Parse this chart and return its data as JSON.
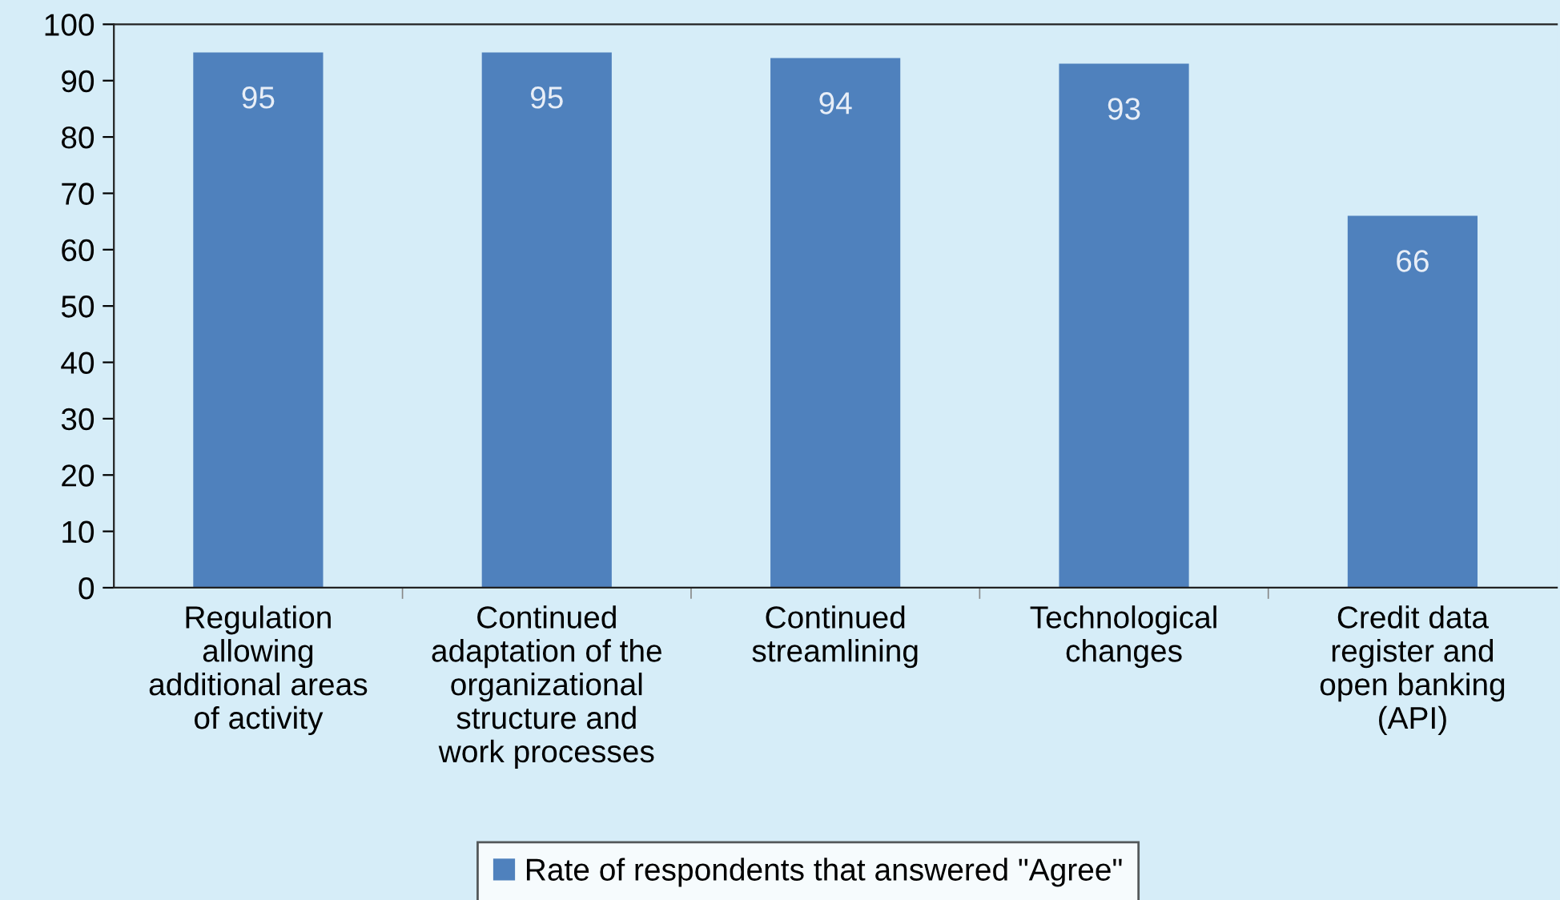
{
  "chart_data": {
    "type": "bar",
    "categories": [
      "Regulation\nallowing\nadditional areas\nof activity",
      "Continued\nadaptation of the\norganizational\nstructure and\nwork processes",
      "Continued\nstreamlining",
      "Technological\nchanges",
      "Credit data\nregister and\nopen banking\n(API)"
    ],
    "series": [
      {
        "name": "Rate of respondents that answered \"Agree\"",
        "color": "#4f81bd",
        "values": [
          95,
          95,
          94,
          93,
          66
        ]
      }
    ],
    "ylim": [
      0,
      100
    ],
    "yticks": [
      0,
      10,
      20,
      30,
      40,
      50,
      60,
      70,
      80,
      90,
      100
    ],
    "data_labels": true,
    "grid": false,
    "legend": "bottom"
  }
}
